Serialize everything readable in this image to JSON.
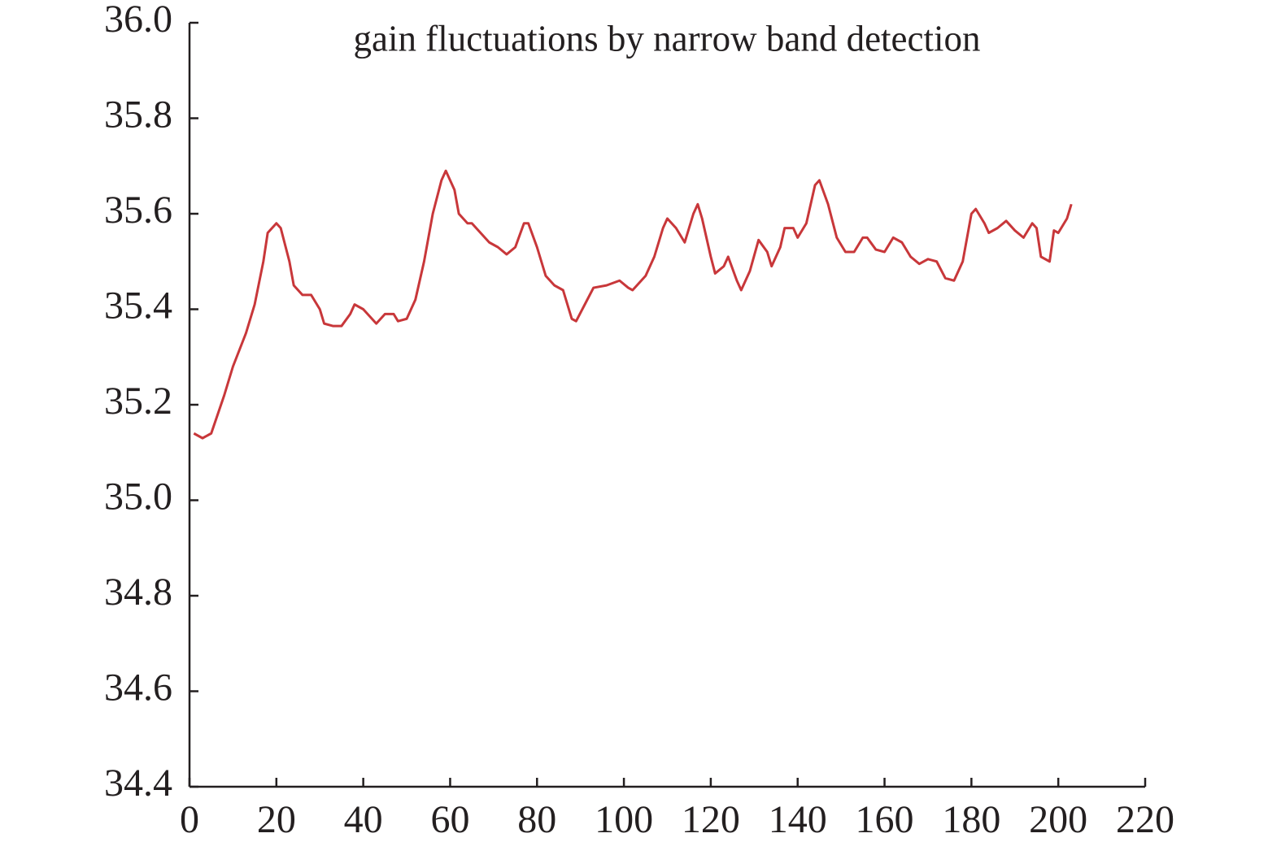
{
  "chart_data": {
    "type": "line",
    "title": "gain fluctuations by narrow band detection",
    "x": [
      1,
      3,
      5,
      8,
      10,
      13,
      15,
      17,
      18,
      20,
      21,
      23,
      24,
      26,
      28,
      30,
      31,
      33,
      35,
      37,
      38,
      40,
      42,
      43,
      45,
      47,
      48,
      50,
      52,
      54,
      56,
      58,
      59,
      61,
      62,
      64,
      65,
      67,
      69,
      71,
      73,
      75,
      77,
      78,
      80,
      82,
      84,
      86,
      88,
      89,
      91,
      93,
      96,
      99,
      101,
      102,
      105,
      107,
      109,
      110,
      112,
      114,
      116,
      117,
      118,
      120,
      121,
      123,
      124,
      126,
      127,
      129,
      131,
      133,
      134,
      136,
      137,
      139,
      140,
      142,
      144,
      145,
      147,
      149,
      151,
      153,
      155,
      156,
      158,
      160,
      162,
      164,
      166,
      168,
      170,
      172,
      174,
      176,
      178,
      180,
      181,
      183,
      184,
      186,
      188,
      190,
      192,
      194,
      195,
      196,
      198,
      199,
      200,
      202,
      203
    ],
    "series": [
      {
        "name": "gain",
        "color": "#c8373a",
        "values": [
          35.14,
          35.13,
          35.14,
          35.22,
          35.28,
          35.35,
          35.41,
          35.5,
          35.56,
          35.58,
          35.57,
          35.5,
          35.45,
          35.43,
          35.43,
          35.4,
          35.37,
          35.365,
          35.365,
          35.39,
          35.41,
          35.4,
          35.38,
          35.37,
          35.39,
          35.39,
          35.375,
          35.38,
          35.42,
          35.5,
          35.6,
          35.67,
          35.69,
          35.65,
          35.6,
          35.58,
          35.58,
          35.56,
          35.54,
          35.53,
          35.515,
          35.53,
          35.58,
          35.58,
          35.53,
          35.47,
          35.45,
          35.44,
          35.38,
          35.375,
          35.41,
          35.445,
          35.45,
          35.46,
          35.445,
          35.44,
          35.47,
          35.51,
          35.57,
          35.59,
          35.57,
          35.54,
          35.6,
          35.62,
          35.59,
          35.51,
          35.475,
          35.49,
          35.51,
          35.46,
          35.44,
          35.48,
          35.545,
          35.52,
          35.49,
          35.53,
          35.57,
          35.57,
          35.55,
          35.58,
          35.66,
          35.67,
          35.62,
          35.55,
          35.52,
          35.52,
          35.55,
          35.55,
          35.525,
          35.52,
          35.55,
          35.54,
          35.51,
          35.495,
          35.505,
          35.5,
          35.465,
          35.46,
          35.5,
          35.6,
          35.61,
          35.58,
          35.56,
          35.57,
          35.585,
          35.565,
          35.55,
          35.58,
          35.57,
          35.51,
          35.5,
          35.565,
          35.56,
          35.59,
          35.62
        ]
      }
    ],
    "xlim": [
      0,
      220
    ],
    "xticks": [
      0,
      20,
      40,
      60,
      80,
      100,
      120,
      140,
      160,
      180,
      200,
      220
    ],
    "ylim": [
      34.4,
      36.0
    ],
    "yticks": [
      {
        "value": 34.4,
        "label": "34.4"
      },
      {
        "value": 34.6,
        "label": "34.6"
      },
      {
        "value": 34.8,
        "label": "34.8"
      },
      {
        "value": 35.0,
        "label": "35.0"
      },
      {
        "value": 35.2,
        "label": "35.2"
      },
      {
        "value": 35.4,
        "label": "35.4"
      },
      {
        "value": 35.6,
        "label": "35.6"
      },
      {
        "value": 35.8,
        "label": "35.8"
      },
      {
        "value": 36.0,
        "label": "36.0"
      }
    ]
  }
}
